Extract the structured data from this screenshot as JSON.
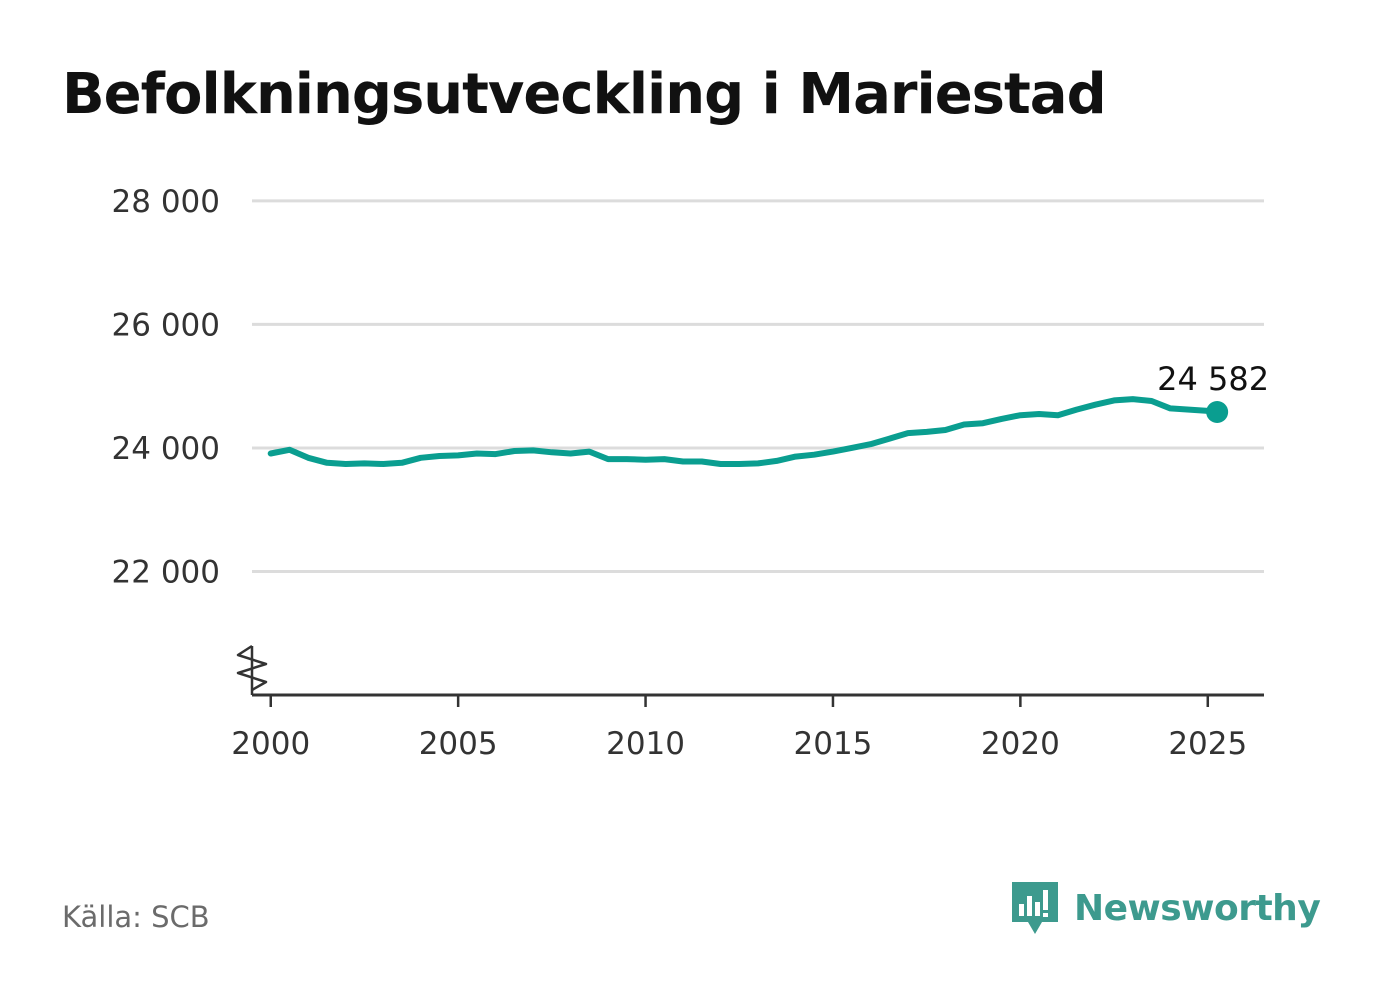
{
  "title": "Befolkningsutveckling i Mariestad",
  "source": "Källa: SCB",
  "brand": {
    "name": "Newsworthy",
    "icon": "newsworthy-logo-icon",
    "color": "#3d9a8e"
  },
  "colors": {
    "line": "#0a9e90",
    "grid": "#dcdcdc",
    "axis": "#333333",
    "text": "#333333"
  },
  "chart_data": {
    "type": "line",
    "title": "Befolkningsutveckling i Mariestad",
    "xlabel": "",
    "ylabel": "",
    "xlim": [
      1999.5,
      2026.5
    ],
    "ylim": [
      20000,
      28500
    ],
    "y_axis_break": true,
    "grid": "horizontal",
    "x_ticks": [
      2000,
      2005,
      2010,
      2015,
      2020,
      2025
    ],
    "x_tick_labels": [
      "2000",
      "2005",
      "2010",
      "2015",
      "2020",
      "2025"
    ],
    "y_ticks": [
      22000,
      24000,
      26000,
      28000
    ],
    "y_tick_labels": [
      "22 000",
      "24 000",
      "26 000",
      "28 000"
    ],
    "end_label": "24 582",
    "series": [
      {
        "color": "#0a9e90",
        "x": [
          2000.0,
          2000.5,
          2001.0,
          2001.5,
          2002.0,
          2002.5,
          2003.0,
          2003.5,
          2004.0,
          2004.5,
          2005.0,
          2005.5,
          2006.0,
          2006.5,
          2007.0,
          2007.5,
          2008.0,
          2008.5,
          2009.0,
          2009.5,
          2010.0,
          2010.5,
          2011.0,
          2011.5,
          2012.0,
          2012.5,
          2013.0,
          2013.5,
          2014.0,
          2014.5,
          2015.0,
          2015.5,
          2016.0,
          2016.5,
          2017.0,
          2017.5,
          2018.0,
          2018.5,
          2019.0,
          2019.5,
          2020.0,
          2020.5,
          2021.0,
          2021.5,
          2022.0,
          2022.5,
          2023.0,
          2023.5,
          2024.0,
          2024.5,
          2025.0,
          2025.25
        ],
        "values": [
          23910,
          23970,
          23840,
          23760,
          23740,
          23750,
          23740,
          23760,
          23840,
          23870,
          23880,
          23910,
          23900,
          23950,
          23960,
          23930,
          23910,
          23940,
          23820,
          23820,
          23810,
          23820,
          23780,
          23780,
          23740,
          23740,
          23750,
          23790,
          23860,
          23890,
          23940,
          24000,
          24060,
          24150,
          24240,
          24260,
          24290,
          24380,
          24400,
          24470,
          24530,
          24550,
          24530,
          24620,
          24700,
          24770,
          24790,
          24760,
          24640,
          24620,
          24600,
          24582
        ]
      }
    ]
  }
}
